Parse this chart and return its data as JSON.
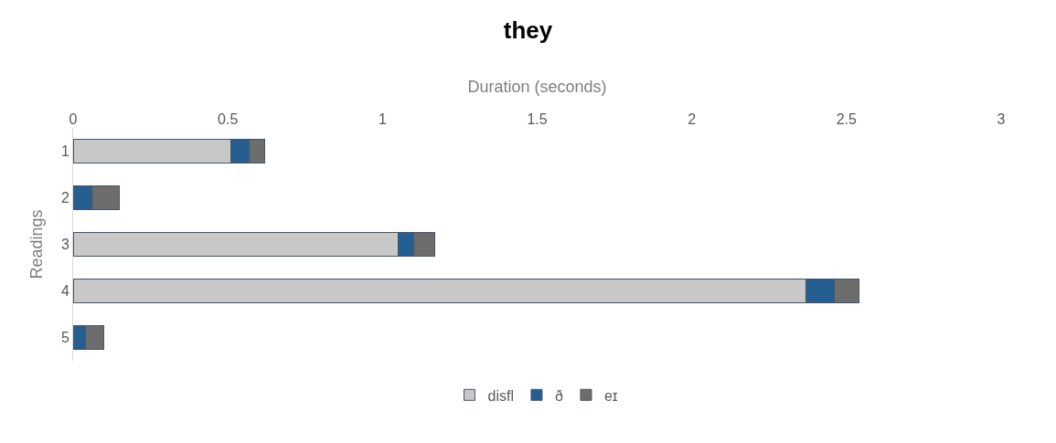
{
  "chart_data": {
    "type": "bar",
    "orientation": "horizontal",
    "stacked": true,
    "title": "they",
    "xlabel": "Duration (seconds)",
    "ylabel": "Readings",
    "categories": [
      "1",
      "2",
      "3",
      "4",
      "5"
    ],
    "series": [
      {
        "name": "disfl",
        "color": "#c8c8c8",
        "values": [
          0.51,
          0,
          1.05,
          2.37,
          0
        ]
      },
      {
        "name": "ð",
        "color": "#255e91",
        "values": [
          0.06,
          0.06,
          0.05,
          0.09,
          0.04
        ]
      },
      {
        "name": "eɪ",
        "color": "#6d6d6d",
        "values": [
          0.05,
          0.09,
          0.07,
          0.08,
          0.06
        ]
      }
    ],
    "xlim": [
      0,
      3
    ],
    "xticks": [
      0,
      0.5,
      1,
      1.5,
      2,
      2.5,
      3
    ],
    "legend": "bottom"
  }
}
